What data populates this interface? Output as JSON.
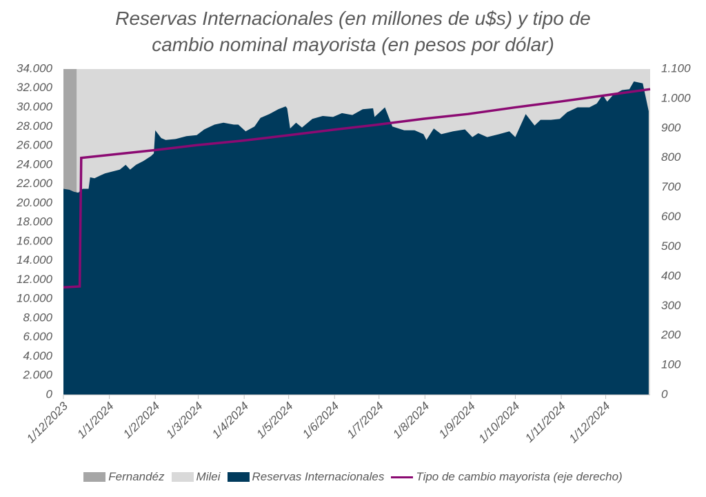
{
  "chart_data": {
    "type": "area-line",
    "title": "Reservas Internacionales (en millones de u$s) y tipo de cambio nominal mayorista (en pesos por dólar)",
    "xlim": [
      "2023-12-01",
      "2024-12-31"
    ],
    "xticks": [
      {
        "value": "2023-12-01",
        "label": "1/12/2023"
      },
      {
        "value": "2024-01-01",
        "label": "1/1/2024"
      },
      {
        "value": "2024-02-01",
        "label": "1/2/2024"
      },
      {
        "value": "2024-03-01",
        "label": "1/3/2024"
      },
      {
        "value": "2024-04-01",
        "label": "1/4/2024"
      },
      {
        "value": "2024-05-01",
        "label": "1/5/2024"
      },
      {
        "value": "2024-06-01",
        "label": "1/6/2024"
      },
      {
        "value": "2024-07-01",
        "label": "1/7/2024"
      },
      {
        "value": "2024-08-01",
        "label": "1/8/2024"
      },
      {
        "value": "2024-09-01",
        "label": "1/9/2024"
      },
      {
        "value": "2024-10-01",
        "label": "1/10/2024"
      },
      {
        "value": "2024-11-01",
        "label": "1/11/2024"
      },
      {
        "value": "2024-12-01",
        "label": "1/12/2024"
      }
    ],
    "ylim": [
      0,
      34000
    ],
    "yticks": [
      0,
      {
        "value": 2000,
        "label": "2.000"
      },
      {
        "value": 4000,
        "label": "4.000"
      },
      {
        "value": 6000,
        "label": "6.000"
      },
      {
        "value": 8000,
        "label": "8.000"
      },
      {
        "value": 10000,
        "label": "10.000"
      },
      {
        "value": 12000,
        "label": "12.000"
      },
      {
        "value": 14000,
        "label": "14.000"
      },
      {
        "value": 16000,
        "label": "16.000"
      },
      {
        "value": 18000,
        "label": "18.000"
      },
      {
        "value": 20000,
        "label": "20.000"
      },
      {
        "value": 22000,
        "label": "22.000"
      },
      {
        "value": 24000,
        "label": "24.000"
      },
      {
        "value": 26000,
        "label": "26.000"
      },
      {
        "value": 28000,
        "label": "28.000"
      },
      {
        "value": 30000,
        "label": "30.000"
      },
      {
        "value": 32000,
        "label": "32.000"
      },
      {
        "value": 34000,
        "label": "34.000"
      }
    ],
    "y2lim": [
      0,
      1100
    ],
    "y2ticks": [
      0,
      100,
      200,
      300,
      400,
      500,
      600,
      700,
      800,
      900,
      {
        "value": 1000,
        "label": "1.000"
      },
      {
        "value": 1100,
        "label": "1.100"
      }
    ],
    "series": [
      {
        "name": "Fernandéz",
        "kind": "area",
        "color": "#a6a6a6",
        "x": [
          "2023-12-01",
          "2023-12-10"
        ],
        "values": [
          34000,
          34000
        ]
      },
      {
        "name": "Milei",
        "kind": "area",
        "color": "#d9d9d9",
        "x": [
          "2023-12-10",
          "2024-12-31"
        ],
        "values": [
          34000,
          34000
        ]
      },
      {
        "name": "Reservas Internacionales",
        "kind": "area",
        "color": "#003a5c",
        "x": [
          "2023-12-01",
          "2023-12-05",
          "2023-12-08",
          "2023-12-11",
          "2023-12-14",
          "2023-12-18",
          "2023-12-19",
          "2023-12-22",
          "2023-12-26",
          "2023-12-29",
          "2024-01-03",
          "2024-01-08",
          "2024-01-12",
          "2024-01-15",
          "2024-01-19",
          "2024-01-24",
          "2024-01-29",
          "2024-01-31",
          "2024-02-01",
          "2024-02-05",
          "2024-02-08",
          "2024-02-15",
          "2024-02-22",
          "2024-02-29",
          "2024-03-05",
          "2024-03-12",
          "2024-03-18",
          "2024-03-25",
          "2024-03-28",
          "2024-04-02",
          "2024-04-08",
          "2024-04-12",
          "2024-04-18",
          "2024-04-24",
          "2024-04-29",
          "2024-04-30",
          "2024-05-02",
          "2024-05-06",
          "2024-05-10",
          "2024-05-17",
          "2024-05-24",
          "2024-05-31",
          "2024-06-06",
          "2024-06-13",
          "2024-06-20",
          "2024-06-27",
          "2024-06-28",
          "2024-07-05",
          "2024-07-10",
          "2024-07-18",
          "2024-07-25",
          "2024-07-31",
          "2024-08-02",
          "2024-08-07",
          "2024-08-12",
          "2024-08-20",
          "2024-08-28",
          "2024-09-02",
          "2024-09-06",
          "2024-09-12",
          "2024-09-20",
          "2024-09-27",
          "2024-10-01",
          "2024-10-08",
          "2024-10-14",
          "2024-10-18",
          "2024-10-25",
          "2024-10-31",
          "2024-11-05",
          "2024-11-12",
          "2024-11-20",
          "2024-11-25",
          "2024-11-29",
          "2024-12-02",
          "2024-12-06",
          "2024-12-12",
          "2024-12-17",
          "2024-12-20",
          "2024-12-26",
          "2024-12-30"
        ],
        "values": [
          21500,
          21400,
          21200,
          21100,
          21500,
          21500,
          22700,
          22600,
          22900,
          23100,
          23300,
          23500,
          24000,
          23500,
          24000,
          24400,
          24900,
          25200,
          27600,
          26800,
          26600,
          26700,
          27000,
          27100,
          27700,
          28200,
          28400,
          28200,
          28200,
          27500,
          28000,
          28900,
          29300,
          29800,
          30100,
          29900,
          27800,
          28400,
          27900,
          28800,
          29100,
          29000,
          29400,
          29200,
          29800,
          29900,
          29000,
          30000,
          28000,
          27600,
          27600,
          27200,
          26600,
          27800,
          27200,
          27500,
          27700,
          26900,
          27300,
          26900,
          27200,
          27500,
          26900,
          29300,
          28100,
          28700,
          28700,
          28800,
          29500,
          30000,
          30000,
          30400,
          31300,
          30600,
          31300,
          31800,
          31900,
          32700,
          32500,
          29600
        ]
      },
      {
        "name": "Tipo de cambio mayorista (eje derecho)",
        "kind": "line",
        "axis": "y2",
        "color": "#8b0a72",
        "x": [
          "2023-12-01",
          "2023-12-12",
          "2023-12-13",
          "2024-01-31",
          "2024-02-29",
          "2024-03-31",
          "2024-04-30",
          "2024-05-31",
          "2024-06-28",
          "2024-07-31",
          "2024-08-30",
          "2024-09-30",
          "2024-10-31",
          "2024-11-29",
          "2024-12-31"
        ],
        "values": [
          363,
          366,
          800,
          826,
          843,
          858,
          876,
          895,
          911,
          932,
          948,
          970,
          990,
          1010,
          1032
        ]
      }
    ]
  }
}
